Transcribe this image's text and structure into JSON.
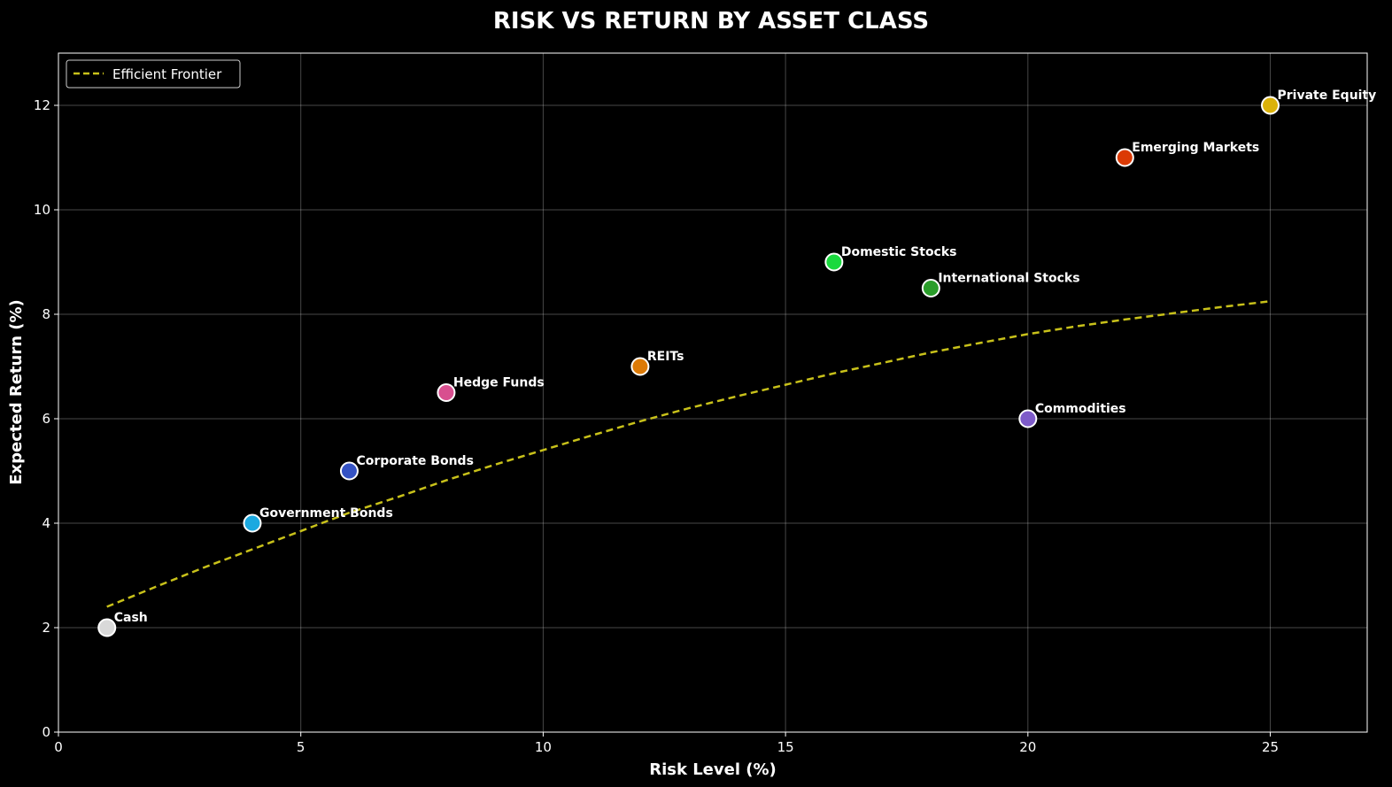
{
  "chart_data": {
    "type": "scatter",
    "title": "RISK VS RETURN BY ASSET CLASS",
    "xlabel": "Risk Level (%)",
    "ylabel": "Expected Return (%)",
    "xlim": [
      0,
      27
    ],
    "ylim": [
      0,
      13
    ],
    "xticks": [
      0,
      5,
      10,
      15,
      20,
      25
    ],
    "yticks": [
      0,
      2,
      4,
      6,
      8,
      10,
      12
    ],
    "grid": true,
    "legend_position": "top-left",
    "points": [
      {
        "label": "Cash",
        "x": 1,
        "y": 2,
        "color": "#d9d9d9"
      },
      {
        "label": "Government Bonds",
        "x": 4,
        "y": 4,
        "color": "#1ba9e0"
      },
      {
        "label": "Corporate Bonds",
        "x": 6,
        "y": 5,
        "color": "#3553c4"
      },
      {
        "label": "Hedge Funds",
        "x": 8,
        "y": 6.5,
        "color": "#d84f8f"
      },
      {
        "label": "REITs",
        "x": 12,
        "y": 7,
        "color": "#dc7a07"
      },
      {
        "label": "Domestic Stocks",
        "x": 16,
        "y": 9,
        "color": "#1ad93e"
      },
      {
        "label": "International Stocks",
        "x": 18,
        "y": 8.5,
        "color": "#2a9d2a"
      },
      {
        "label": "Commodities",
        "x": 20,
        "y": 6,
        "color": "#7e5bc9"
      },
      {
        "label": "Emerging Markets",
        "x": 22,
        "y": 11,
        "color": "#db3a05"
      },
      {
        "label": "Private Equity",
        "x": 25,
        "y": 12,
        "color": "#dbb20a"
      }
    ],
    "series": [
      {
        "name": "Efficient Frontier",
        "style": "dashed",
        "color": "#c8c11a",
        "x": [
          1,
          2,
          3,
          4,
          5,
          6,
          7,
          8,
          9,
          10,
          11,
          12,
          13,
          14,
          15,
          16,
          17,
          18,
          19,
          20,
          21,
          22,
          23,
          24,
          25
        ],
        "y": [
          2.4,
          2.78,
          3.15,
          3.5,
          3.85,
          4.2,
          4.5,
          4.82,
          5.12,
          5.4,
          5.68,
          5.95,
          6.2,
          6.43,
          6.65,
          6.87,
          7.07,
          7.27,
          7.45,
          7.62,
          7.77,
          7.9,
          8.02,
          8.14,
          8.25
        ]
      }
    ]
  }
}
